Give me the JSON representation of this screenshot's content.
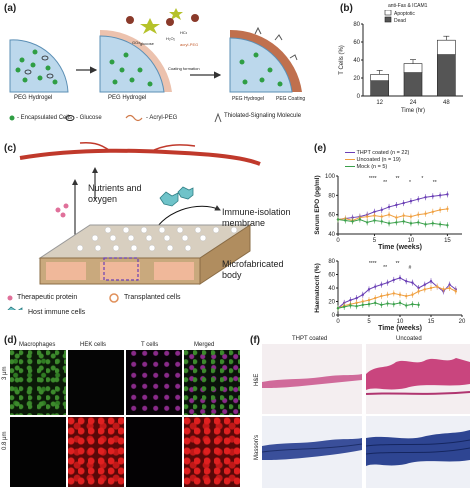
{
  "panels": {
    "a": {
      "letter": "(a)",
      "hydrogel_label_1": "PEG Hydrogel",
      "hydrogel_label_2": "PEG Hydrogel",
      "hydrogel_label_3": "PEG Hydrogel",
      "coating_label": "PEG Coating",
      "coating_formation": "Coating formation",
      "gox": "GOx",
      "glucose_text": "glucose",
      "h2o2": "H₂O₂",
      "hc": "HC•",
      "acryl": "acryl-PEG",
      "legend_cells": "- Encapsulated Cells",
      "legend_glucose": "- Glucose",
      "legend_acryl": "- Acryl-PEG",
      "legend_thiol": "Thiolated-Signaling Molecule",
      "legend_thiol_2": "Molecule"
    },
    "b": {
      "letter": "(b)",
      "legend_title": "anti-Fas & ICAM1",
      "legend_apoptotic": "Apoptotic",
      "legend_dead": "Dead"
    },
    "c": {
      "letter": "(c)",
      "nutrients": "Nutrients and oxygen",
      "membrane": "Immune-isolation membrane",
      "body": "Microfabricated body",
      "legend_protein": "Therapeutic protein",
      "legend_transplanted": "Transplanted cells",
      "legend_immune": "Host immune cells"
    },
    "d": {
      "letter": "(d)",
      "columns": [
        "Macrophages",
        "HEK cells",
        "T cells",
        "Merged"
      ],
      "rows": [
        "3 μm",
        "0.8 μm"
      ]
    },
    "e": {
      "letter": "(e)",
      "legend": [
        "THPT coated (n = 22)",
        "Uncoated (n = 19)",
        "Mock (n = 5)"
      ]
    },
    "f": {
      "letter": "(f)",
      "columns": [
        "THPT coated",
        "Uncoated"
      ],
      "rows": [
        "H&E",
        "Masson's"
      ]
    }
  },
  "chart_data": [
    {
      "type": "bar",
      "ylabel": "T Cells (%)",
      "xlabel": "Time (hr)",
      "categories": [
        "12",
        "24",
        "48"
      ],
      "ylim": [
        0,
        80
      ],
      "yticks": [
        "0",
        "20",
        "40",
        "60",
        "80"
      ],
      "series": [
        {
          "name": "Dead",
          "values": [
            17,
            26,
            46
          ]
        },
        {
          "name": "Apoptotic",
          "values": [
            7,
            10,
            16
          ]
        }
      ],
      "colors": {
        "Dead": "#555555",
        "Apoptotic": "#ffffff"
      }
    },
    {
      "type": "line",
      "ylabel": "Serum EPO (pg/ml)",
      "xlabel": "Time (weeks)",
      "xlim": [
        0,
        17
      ],
      "ylim": [
        40,
        100
      ],
      "xticks": [
        "0",
        "5",
        "10",
        "15"
      ],
      "yticks": [
        "40",
        "60",
        "80",
        "100"
      ],
      "annotations": [
        "****",
        "**",
        "**",
        "*",
        "*",
        "**"
      ],
      "series": [
        {
          "name": "THPT coated",
          "color": "#6a3fb5",
          "x": [
            0,
            1,
            2,
            3,
            4,
            5,
            6,
            7,
            8,
            9,
            10,
            11,
            12,
            13,
            14,
            15
          ],
          "y": [
            55,
            56,
            57,
            58,
            60,
            63,
            65,
            68,
            70,
            72,
            74,
            76,
            78,
            79,
            80,
            81
          ]
        },
        {
          "name": "Uncoated",
          "color": "#f0a040",
          "x": [
            0,
            1,
            2,
            3,
            4,
            5,
            6,
            7,
            8,
            9,
            10,
            11,
            12,
            13,
            14,
            15
          ],
          "y": [
            55,
            56,
            54,
            57,
            58,
            59,
            58,
            60,
            57,
            59,
            58,
            60,
            61,
            63,
            65,
            66
          ]
        },
        {
          "name": "Mock",
          "color": "#3aa04a",
          "x": [
            0,
            1,
            2,
            3,
            4,
            5,
            6,
            7,
            8,
            9,
            10,
            11,
            12,
            13,
            14,
            15
          ],
          "y": [
            55,
            54,
            53,
            55,
            52,
            54,
            53,
            51,
            52,
            53,
            51,
            52,
            50,
            51,
            50,
            49
          ]
        }
      ]
    },
    {
      "type": "line",
      "ylabel": "Haematocrit (%)",
      "xlabel": "Time (weeks)",
      "xlim": [
        0,
        20
      ],
      "ylim": [
        0,
        80
      ],
      "xticks": [
        "0",
        "5",
        "10",
        "15",
        "20"
      ],
      "yticks": [
        "0",
        "20",
        "40",
        "60",
        "80"
      ],
      "annotations": [
        "****",
        "**",
        "**",
        "#"
      ],
      "series": [
        {
          "name": "THPT coated",
          "color": "#6a3fb5",
          "x": [
            0,
            1,
            2,
            3,
            4,
            5,
            6,
            7,
            8,
            9,
            10,
            11,
            12,
            13,
            14,
            15,
            16,
            17,
            18,
            19
          ],
          "y": [
            10,
            18,
            22,
            25,
            30,
            38,
            42,
            45,
            48,
            52,
            55,
            50,
            48,
            40,
            45,
            50,
            42,
            35,
            45,
            38
          ]
        },
        {
          "name": "Uncoated",
          "color": "#f0a040",
          "x": [
            0,
            1,
            2,
            3,
            4,
            5,
            6,
            7,
            8,
            9,
            10,
            11,
            12,
            13,
            14,
            15,
            16,
            17,
            18,
            19
          ],
          "y": [
            10,
            14,
            16,
            18,
            20,
            22,
            25,
            28,
            30,
            32,
            30,
            28,
            30,
            35,
            38,
            40,
            42,
            38,
            40,
            35
          ]
        },
        {
          "name": "Mock",
          "color": "#3aa04a",
          "x": [
            0,
            1,
            2,
            3,
            4,
            5,
            6,
            7,
            8,
            9,
            10,
            11,
            12,
            13
          ],
          "y": [
            10,
            12,
            14,
            13,
            15,
            16,
            18,
            15,
            17,
            16,
            18,
            14,
            16,
            15
          ]
        }
      ]
    }
  ]
}
